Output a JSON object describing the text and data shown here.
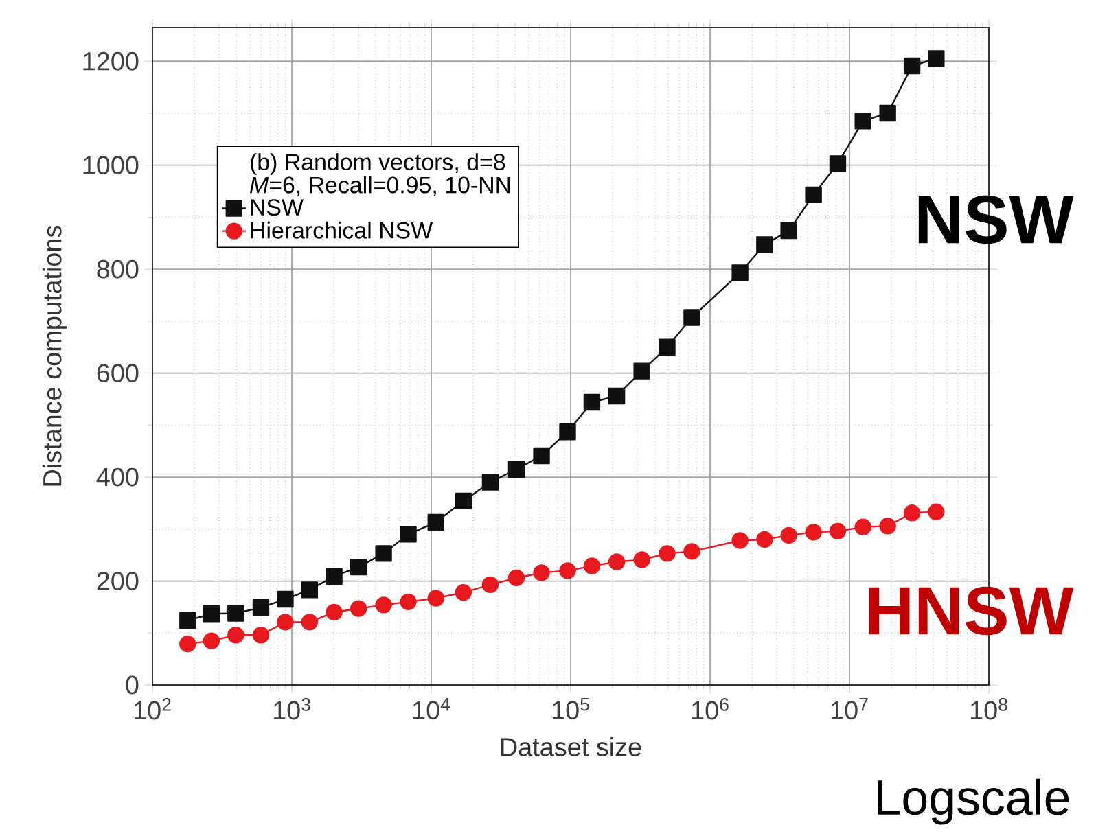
{
  "chart_data": {
    "type": "line",
    "xlabel": "Dataset size",
    "ylabel": "Distance computations",
    "legend_title": [
      "(b) Random vectors, d=8",
      "*M*=6, Recall=0.95, 10-NN"
    ],
    "x": [
      179,
      265,
      396,
      600,
      897,
      1340,
      2010,
      3010,
      4550,
      6840,
      10800,
      17000,
      26500,
      40800,
      61800,
      95000,
      142000,
      214000,
      324000,
      492000,
      740000,
      1640000,
      2460000,
      3670000,
      5520000,
      8240000,
      12500000,
      18800000,
      28100000,
      41900000
    ],
    "series": [
      {
        "name": "NSW",
        "color": "#111111",
        "marker": "square",
        "values": [
          124,
          137,
          138,
          149,
          165,
          183,
          209,
          227,
          253,
          290,
          313,
          354,
          390,
          415,
          441,
          487,
          544,
          556,
          604,
          650,
          707,
          793,
          847,
          874,
          943,
          1003,
          1085,
          1100,
          1191,
          1205
        ]
      },
      {
        "name": "Hierarchical NSW",
        "color": "#e8191e",
        "marker": "circle",
        "values": [
          79,
          85,
          96,
          96,
          121,
          121,
          140,
          147,
          154,
          160,
          167,
          178,
          193,
          206,
          216,
          220,
          229,
          237,
          241,
          253,
          257,
          278,
          280,
          288,
          294,
          296,
          304,
          306,
          331,
          333
        ]
      }
    ],
    "log": "x",
    "xlim": [
      100,
      100000000
    ],
    "ylim": [
      0,
      1265
    ],
    "xticks": [
      {
        "value": 100,
        "label": "10$^{2}$"
      },
      {
        "value": 1000,
        "label": "10$^{3}$"
      },
      {
        "value": 10000,
        "label": "10$^{4}$"
      },
      {
        "value": 100000,
        "label": "10$^{5}$"
      },
      {
        "value": 1000000,
        "label": "10$^{6}$"
      },
      {
        "value": 10000000,
        "label": "10$^{7}$"
      },
      {
        "value": 100000000,
        "label": "10$^{8}$"
      }
    ],
    "yticks": [
      0,
      200,
      400,
      600,
      800,
      1000,
      1200
    ],
    "grid": true,
    "legend": "top left",
    "line_style": "solid",
    "annotations": [
      "NSW",
      "HNSW",
      "Logscale"
    ]
  }
}
